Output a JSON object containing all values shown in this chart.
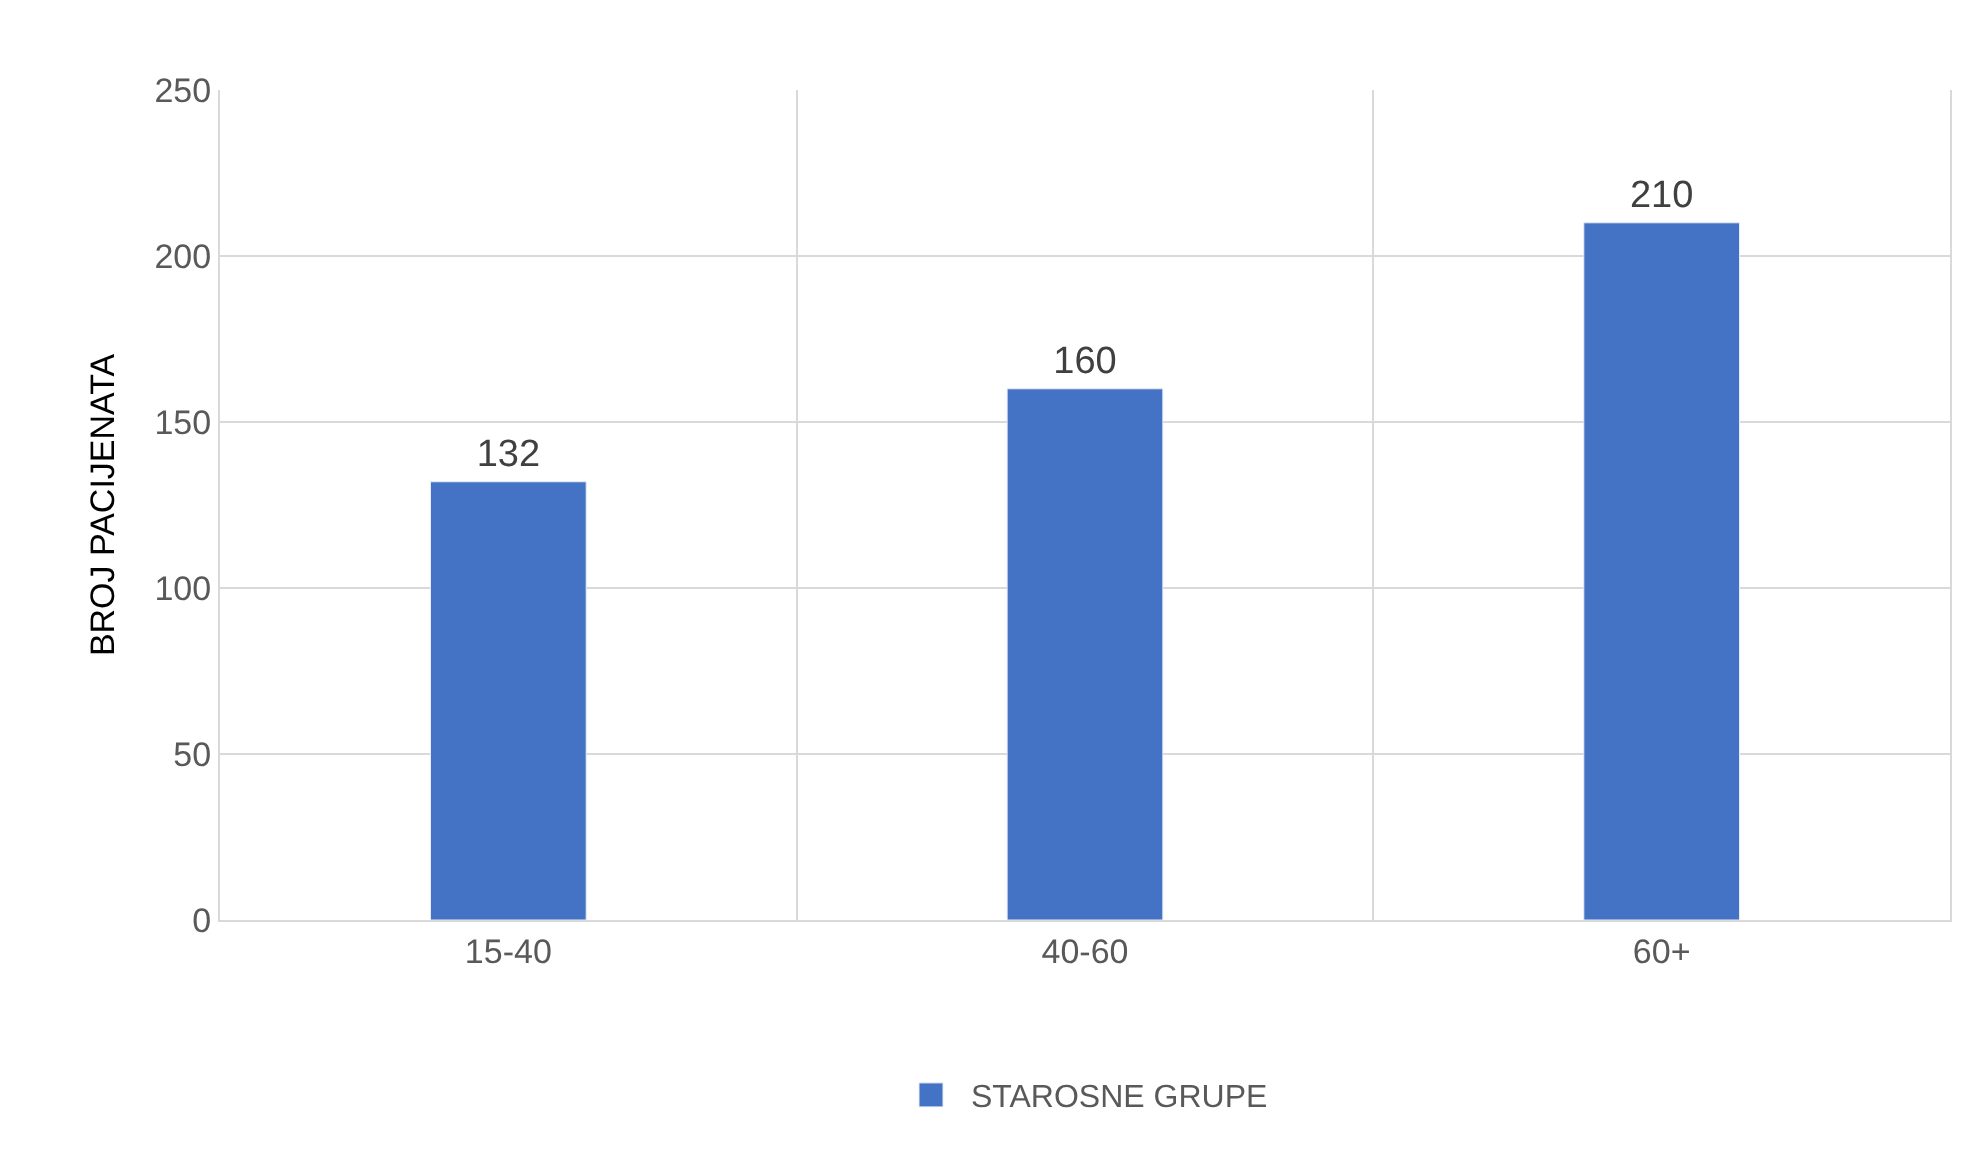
{
  "chart_data": {
    "type": "bar",
    "ylabel": "BROJ PACIJENATA",
    "categories": [
      "15-40",
      "40-60",
      "60+"
    ],
    "series": [
      {
        "name": "STAROSNE GRUPE",
        "color": "#4472c4",
        "values": [
          132,
          160,
          210
        ]
      }
    ],
    "ylim": [
      0,
      250
    ],
    "yticks": [
      0,
      50,
      100,
      150,
      200,
      250
    ],
    "grid": true,
    "legend": "bottom",
    "data_labels": true
  }
}
